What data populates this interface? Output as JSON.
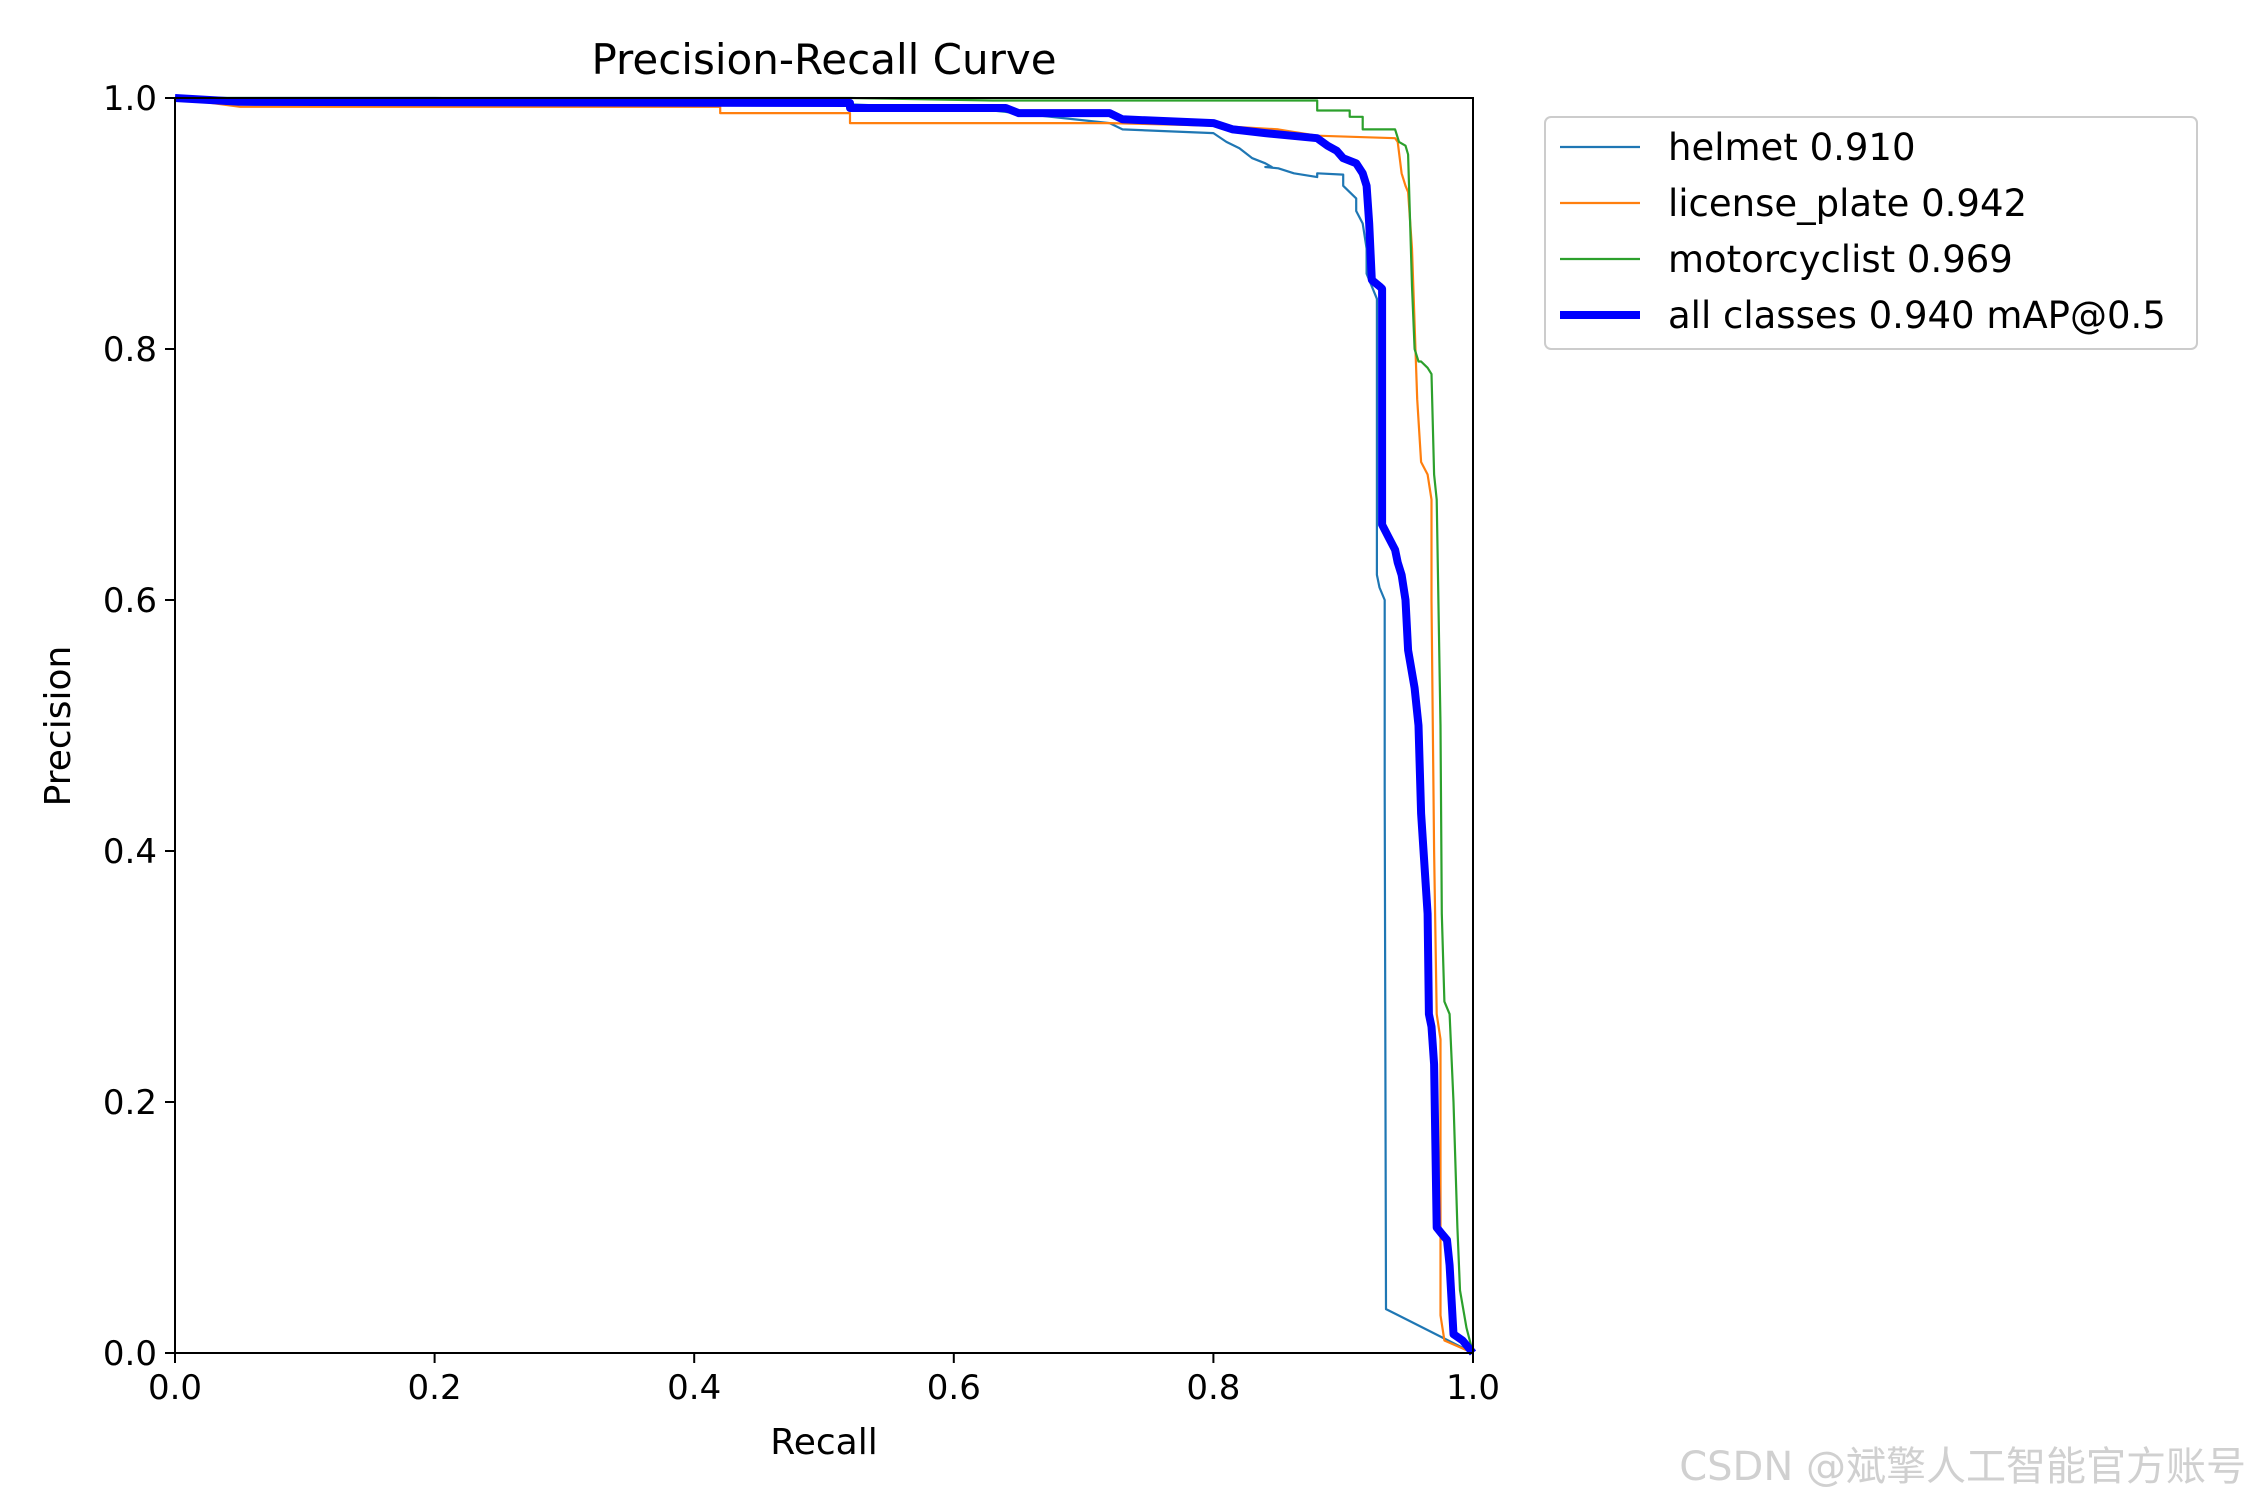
{
  "chart_data": {
    "type": "line",
    "title": "Precision-Recall Curve",
    "xlabel": "Recall",
    "ylabel": "Precision",
    "xlim": [
      0,
      1
    ],
    "ylim": [
      0,
      1
    ],
    "xticks": [
      "0.0",
      "0.2",
      "0.4",
      "0.6",
      "0.8",
      "1.0"
    ],
    "yticks": [
      "0.0",
      "0.2",
      "0.4",
      "0.6",
      "0.8",
      "1.0"
    ],
    "grid": false,
    "legend_position": "outside-top-right",
    "series": [
      {
        "name": "helmet 0.910",
        "color": "#1f77b4",
        "width": "thin",
        "points": [
          [
            0,
            1.0
          ],
          [
            0.05,
            1.0
          ],
          [
            0.2,
            1.0
          ],
          [
            0.52,
            0.995
          ],
          [
            0.63,
            0.99
          ],
          [
            0.72,
            0.98
          ],
          [
            0.73,
            0.975
          ],
          [
            0.8,
            0.972
          ],
          [
            0.81,
            0.965
          ],
          [
            0.82,
            0.96
          ],
          [
            0.83,
            0.952
          ],
          [
            0.84,
            0.948
          ],
          [
            0.845,
            0.945
          ],
          [
            0.84,
            0.945
          ],
          [
            0.85,
            0.944
          ],
          [
            0.862,
            0.94
          ],
          [
            0.88,
            0.937
          ],
          [
            0.88,
            0.94
          ],
          [
            0.9,
            0.939
          ],
          [
            0.9,
            0.93
          ],
          [
            0.91,
            0.92
          ],
          [
            0.91,
            0.91
          ],
          [
            0.915,
            0.9
          ],
          [
            0.918,
            0.88
          ],
          [
            0.918,
            0.86
          ],
          [
            0.922,
            0.85
          ],
          [
            0.926,
            0.84
          ],
          [
            0.926,
            0.62
          ],
          [
            0.928,
            0.61
          ],
          [
            0.932,
            0.6
          ],
          [
            0.932,
            0.45
          ],
          [
            0.933,
            0.035
          ],
          [
            1.0,
            0.0
          ]
        ]
      },
      {
        "name": "license_plate 0.942",
        "color": "#ff7f0e",
        "width": "thin",
        "points": [
          [
            0,
            1.0
          ],
          [
            0.05,
            0.993
          ],
          [
            0.42,
            0.993
          ],
          [
            0.42,
            0.988
          ],
          [
            0.52,
            0.988
          ],
          [
            0.52,
            0.98
          ],
          [
            0.72,
            0.98
          ],
          [
            0.8,
            0.978
          ],
          [
            0.85,
            0.975
          ],
          [
            0.88,
            0.97
          ],
          [
            0.94,
            0.968
          ],
          [
            0.942,
            0.965
          ],
          [
            0.945,
            0.94
          ],
          [
            0.948,
            0.93
          ],
          [
            0.95,
            0.925
          ],
          [
            0.953,
            0.88
          ],
          [
            0.957,
            0.76
          ],
          [
            0.96,
            0.71
          ],
          [
            0.965,
            0.7
          ],
          [
            0.968,
            0.68
          ],
          [
            0.968,
            0.6
          ],
          [
            0.97,
            0.4
          ],
          [
            0.972,
            0.27
          ],
          [
            0.975,
            0.25
          ],
          [
            0.975,
            0.03
          ],
          [
            0.978,
            0.01
          ],
          [
            1.0,
            0.0
          ]
        ]
      },
      {
        "name": "motorcyclist 0.969",
        "color": "#2ca02c",
        "width": "thin",
        "points": [
          [
            0,
            1.0
          ],
          [
            0.52,
            1.0
          ],
          [
            0.63,
            0.998
          ],
          [
            0.88,
            0.998
          ],
          [
            0.88,
            0.99
          ],
          [
            0.905,
            0.99
          ],
          [
            0.905,
            0.985
          ],
          [
            0.915,
            0.985
          ],
          [
            0.915,
            0.975
          ],
          [
            0.94,
            0.975
          ],
          [
            0.943,
            0.965
          ],
          [
            0.948,
            0.962
          ],
          [
            0.95,
            0.955
          ],
          [
            0.953,
            0.85
          ],
          [
            0.955,
            0.8
          ],
          [
            0.958,
            0.79
          ],
          [
            0.96,
            0.79
          ],
          [
            0.965,
            0.785
          ],
          [
            0.968,
            0.78
          ],
          [
            0.97,
            0.7
          ],
          [
            0.972,
            0.68
          ],
          [
            0.975,
            0.5
          ],
          [
            0.976,
            0.35
          ],
          [
            0.978,
            0.28
          ],
          [
            0.982,
            0.27
          ],
          [
            0.985,
            0.2
          ],
          [
            0.988,
            0.1
          ],
          [
            0.99,
            0.05
          ],
          [
            0.995,
            0.02
          ],
          [
            1.0,
            0.0
          ]
        ]
      },
      {
        "name": "all classes 0.940 mAP@0.5",
        "color": "#0000ff",
        "width": "thick",
        "points": [
          [
            0,
            1.0
          ],
          [
            0.05,
            0.997
          ],
          [
            0.52,
            0.996
          ],
          [
            0.52,
            0.992
          ],
          [
            0.64,
            0.992
          ],
          [
            0.65,
            0.988
          ],
          [
            0.72,
            0.988
          ],
          [
            0.73,
            0.983
          ],
          [
            0.8,
            0.98
          ],
          [
            0.815,
            0.975
          ],
          [
            0.84,
            0.972
          ],
          [
            0.86,
            0.97
          ],
          [
            0.88,
            0.968
          ],
          [
            0.888,
            0.962
          ],
          [
            0.895,
            0.958
          ],
          [
            0.9,
            0.952
          ],
          [
            0.91,
            0.948
          ],
          [
            0.915,
            0.94
          ],
          [
            0.918,
            0.93
          ],
          [
            0.92,
            0.9
          ],
          [
            0.922,
            0.855
          ],
          [
            0.928,
            0.85
          ],
          [
            0.93,
            0.848
          ],
          [
            0.93,
            0.66
          ],
          [
            0.935,
            0.65
          ],
          [
            0.94,
            0.64
          ],
          [
            0.942,
            0.63
          ],
          [
            0.945,
            0.62
          ],
          [
            0.948,
            0.6
          ],
          [
            0.95,
            0.56
          ],
          [
            0.955,
            0.53
          ],
          [
            0.958,
            0.5
          ],
          [
            0.96,
            0.43
          ],
          [
            0.965,
            0.35
          ],
          [
            0.966,
            0.27
          ],
          [
            0.968,
            0.26
          ],
          [
            0.97,
            0.23
          ],
          [
            0.972,
            0.1
          ],
          [
            0.976,
            0.095
          ],
          [
            0.98,
            0.09
          ],
          [
            0.982,
            0.07
          ],
          [
            0.985,
            0.015
          ],
          [
            0.992,
            0.01
          ],
          [
            1.0,
            0.0
          ]
        ]
      }
    ]
  },
  "watermark": "CSDN @斌擎人工智能官方账号"
}
